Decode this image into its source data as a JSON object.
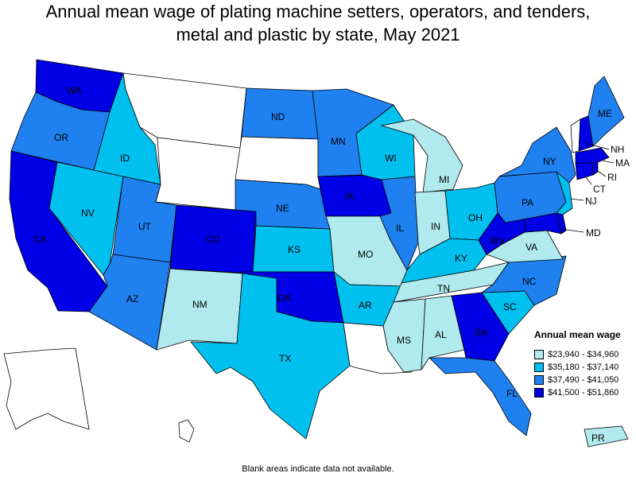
{
  "header": {
    "title_line1": "Annual mean wage of plating machine setters, operators, and tenders,",
    "title_line2": "metal and plastic by state, May 2021"
  },
  "legend": {
    "title": "Annual mean wage",
    "items": [
      {
        "range": "$23,940 - $34,960",
        "color": "#b0eaee"
      },
      {
        "range": "$35,180 - $37,140",
        "color": "#00c0f0"
      },
      {
        "range": "$37,490 - $41,050",
        "color": "#1f80f0"
      },
      {
        "range": "$41,500 - $51,860",
        "color": "#0000e6"
      }
    ]
  },
  "colors": {
    "no_data": "#ffffff",
    "border": "#000000"
  },
  "states": {
    "WA": 4,
    "OR": 3,
    "CA": 4,
    "NV": 2,
    "ID": 2,
    "MT": 0,
    "WY": 0,
    "UT": 3,
    "AZ": 3,
    "CO": 4,
    "NM": 1,
    "ND": 3,
    "SD": 0,
    "NE": 3,
    "KS": 2,
    "OK": 4,
    "TX": 2,
    "MN": 3,
    "IA": 4,
    "MO": 1,
    "AR": 2,
    "LA": 0,
    "WI": 2,
    "IL": 3,
    "MI": 1,
    "IN": 1,
    "OH": 2,
    "KY": 2,
    "TN": 1,
    "MS": 1,
    "AL": 1,
    "GA": 4,
    "FL": 3,
    "SC": 2,
    "NC": 3,
    "VA": 1,
    "WV": 4,
    "MD": 4,
    "PA": 3,
    "NY": 3,
    "NJ": 2,
    "CT": 4,
    "RI": 4,
    "MA": 4,
    "VT": 0,
    "NH": 4,
    "ME": 3,
    "DE": 4,
    "AK": 0,
    "HI": 0,
    "PR": 1
  },
  "state_labels": {
    "WA": "WA",
    "OR": "OR",
    "CA": "CA",
    "NV": "NV",
    "ID": "ID",
    "UT": "UT",
    "AZ": "AZ",
    "CO": "CO",
    "NM": "NM",
    "ND": "ND",
    "NE": "NE",
    "KS": "KS",
    "OK": "OK",
    "TX": "TX",
    "MN": "MN",
    "IA": "IA",
    "MO": "MO",
    "AR": "AR",
    "WI": "WI",
    "IL": "IL",
    "MI": "MI",
    "IN": "IN",
    "OH": "OH",
    "KY": "KY",
    "TN": "TN",
    "MS": "MS",
    "AL": "AL",
    "GA": "GA",
    "FL": "FL",
    "SC": "SC",
    "NC": "NC",
    "VA": "VA",
    "WV": "WV",
    "MD": "MD",
    "PA": "PA",
    "NY": "NY",
    "NJ": "NJ",
    "CT": "CT",
    "RI": "RI",
    "MA": "MA",
    "NH": "NH",
    "ME": "ME",
    "PR": "PR"
  },
  "footnote": "Blank areas indicate data not available."
}
